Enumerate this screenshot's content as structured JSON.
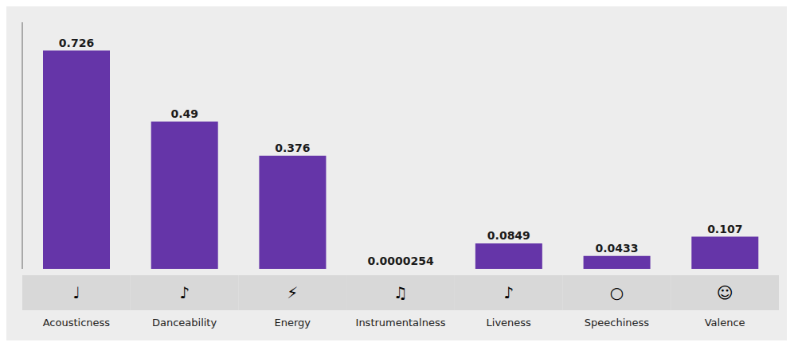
{
  "chart_data": {
    "type": "bar",
    "categories": [
      "Acousticness",
      "Danceability",
      "Energy",
      "Instrumentalness",
      "Liveness",
      "Speechiness",
      "Valence"
    ],
    "values": [
      0.726,
      0.49,
      0.376,
      2.54e-05,
      0.0849,
      0.0433,
      0.107
    ],
    "color": "#6535A8",
    "ylim": [
      0,
      0.82
    ],
    "yticks": [],
    "grid": false,
    "data_labels": true,
    "tick_labels": "x",
    "annotations": [
      "♩",
      "♪",
      "⚡",
      "♫",
      "♪",
      "○",
      "☺"
    ]
  }
}
